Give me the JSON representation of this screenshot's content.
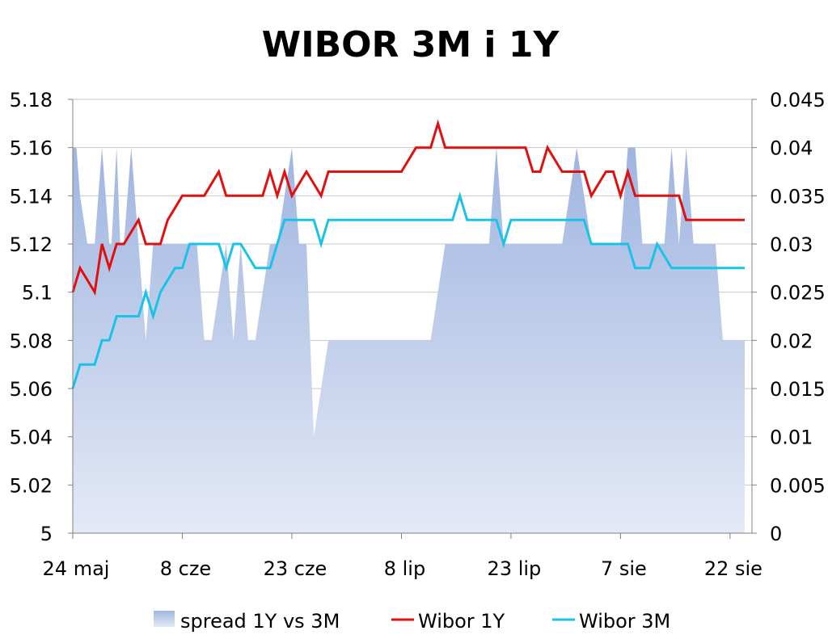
{
  "chart_data": {
    "type": "line",
    "title": "WIBOR 3M i 1Y",
    "xlabel": "",
    "ylabel": "",
    "x_tick_labels": [
      "24 maj",
      "8 cze",
      "23 cze",
      "8 lip",
      "23 lip",
      "7 sie",
      "22 sie"
    ],
    "x_tick_day_offsets": [
      0,
      15,
      30,
      45,
      60,
      75,
      90
    ],
    "x_range_days": [
      0,
      93
    ],
    "y_left": {
      "ylim": [
        5,
        5.18
      ],
      "ticks": [
        "5",
        "5.02",
        "5.04",
        "5.06",
        "5.08",
        "5.1",
        "5.12",
        "5.14",
        "5.16",
        "5.18"
      ]
    },
    "y_right": {
      "ylim": [
        0,
        0.045
      ],
      "ticks": [
        "0",
        "0.005",
        "0.01",
        "0.015",
        "0.02",
        "0.025",
        "0.03",
        "0.035",
        "0.04",
        "0.045"
      ]
    },
    "grid": true,
    "legend_position": "bottom",
    "series": [
      {
        "name": "spread 1Y vs 3M",
        "kind": "area",
        "axis": "right",
        "color": "#9fb5e0",
        "color_light": "#e4e9f6",
        "x": [
          0,
          0.5,
          1,
          2,
          3,
          4,
          5,
          5.3,
          6,
          6.5,
          7,
          7.5,
          8,
          9,
          10,
          11,
          12,
          12.5,
          13,
          13.5,
          14,
          15,
          16,
          17,
          18,
          19,
          20,
          21,
          22,
          23,
          24,
          25,
          26,
          27,
          28,
          29,
          30,
          31,
          32,
          33,
          34,
          35,
          36,
          37,
          38,
          39,
          40,
          41,
          42,
          43,
          44,
          45,
          46,
          47,
          48,
          49,
          50,
          51,
          52,
          53,
          54,
          55,
          56,
          57,
          58,
          59,
          60,
          61,
          62,
          63,
          64,
          65,
          66,
          67,
          68,
          69,
          70,
          71,
          72,
          73,
          74,
          75,
          76,
          77,
          78,
          79,
          80,
          81,
          82,
          83,
          84,
          85,
          86,
          87,
          88,
          89,
          90,
          91,
          92
        ],
        "values": [
          0.04,
          0.04,
          0.035,
          0.03,
          0.03,
          0.04,
          0.03,
          0.03,
          0.04,
          0.03,
          0.03,
          0.035,
          0.04,
          0.03,
          0.02,
          0.03,
          0.03,
          0.03,
          0.03,
          0.03,
          0.03,
          0.03,
          0.03,
          0.03,
          0.02,
          0.02,
          0.025,
          0.03,
          0.02,
          0.03,
          0.02,
          0.02,
          0.025,
          0.03,
          0.03,
          0.035,
          0.04,
          0.03,
          0.03,
          0.01,
          0.015,
          0.02,
          0.02,
          0.02,
          0.02,
          0.02,
          0.02,
          0.02,
          0.02,
          0.02,
          0.02,
          0.02,
          0.02,
          0.02,
          0.02,
          0.02,
          0.025,
          0.03,
          0.03,
          0.03,
          0.03,
          0.03,
          0.03,
          0.03,
          0.04,
          0.03,
          0.03,
          0.03,
          0.03,
          0.03,
          0.03,
          0.03,
          0.03,
          0.03,
          0.035,
          0.04,
          0.035,
          0.03,
          0.03,
          0.03,
          0.03,
          0.03,
          0.04,
          0.04,
          0.03,
          0.03,
          0.03,
          0.03,
          0.04,
          0.03,
          0.04,
          0.03,
          0.03,
          0.03,
          0.03,
          0.02,
          0.02,
          0.02,
          0.02
        ]
      },
      {
        "name": "Wibor 1Y",
        "kind": "line",
        "axis": "left",
        "color": "#e01010",
        "x": [
          0,
          1,
          2,
          3,
          4,
          5,
          6,
          7,
          8,
          9,
          10,
          11,
          12,
          13,
          14,
          15,
          16,
          17,
          18,
          19,
          20,
          21,
          22,
          23,
          24,
          25,
          26,
          27,
          28,
          29,
          30,
          31,
          32,
          33,
          34,
          35,
          36,
          37,
          38,
          39,
          40,
          41,
          42,
          43,
          44,
          45,
          46,
          47,
          48,
          49,
          50,
          51,
          52,
          53,
          54,
          55,
          56,
          57,
          58,
          59,
          60,
          61,
          62,
          63,
          64,
          65,
          66,
          67,
          68,
          69,
          70,
          71,
          72,
          73,
          74,
          75,
          76,
          77,
          78,
          79,
          80,
          81,
          82,
          83,
          84,
          85,
          86,
          87,
          88,
          89,
          90,
          91,
          92
        ],
        "values": [
          5.1,
          5.11,
          5.105,
          5.1,
          5.12,
          5.11,
          5.12,
          5.12,
          5.125,
          5.13,
          5.12,
          5.12,
          5.12,
          5.13,
          5.135,
          5.14,
          5.14,
          5.14,
          5.14,
          5.145,
          5.15,
          5.14,
          5.14,
          5.14,
          5.14,
          5.14,
          5.14,
          5.15,
          5.14,
          5.15,
          5.14,
          5.145,
          5.15,
          5.145,
          5.14,
          5.15,
          5.15,
          5.15,
          5.15,
          5.15,
          5.15,
          5.15,
          5.15,
          5.15,
          5.15,
          5.15,
          5.155,
          5.16,
          5.16,
          5.16,
          5.17,
          5.16,
          5.16,
          5.16,
          5.16,
          5.16,
          5.16,
          5.16,
          5.16,
          5.16,
          5.16,
          5.16,
          5.16,
          5.15,
          5.15,
          5.16,
          5.155,
          5.15,
          5.15,
          5.15,
          5.15,
          5.14,
          5.145,
          5.15,
          5.15,
          5.14,
          5.15,
          5.14,
          5.14,
          5.14,
          5.14,
          5.14,
          5.14,
          5.14,
          5.13,
          5.13,
          5.13,
          5.13,
          5.13,
          5.13,
          5.13,
          5.13,
          5.13
        ]
      },
      {
        "name": "Wibor 3M",
        "kind": "line",
        "axis": "left",
        "color": "#19c3e8",
        "x": [
          0,
          1,
          2,
          3,
          4,
          5,
          6,
          7,
          8,
          9,
          10,
          11,
          12,
          13,
          14,
          15,
          16,
          17,
          18,
          19,
          20,
          21,
          22,
          23,
          24,
          25,
          26,
          27,
          28,
          29,
          30,
          31,
          32,
          33,
          34,
          35,
          36,
          37,
          38,
          39,
          40,
          41,
          42,
          43,
          44,
          45,
          46,
          47,
          48,
          49,
          50,
          51,
          52,
          53,
          54,
          55,
          56,
          57,
          58,
          59,
          60,
          61,
          62,
          63,
          64,
          65,
          66,
          67,
          68,
          69,
          70,
          71,
          72,
          73,
          74,
          75,
          76,
          77,
          78,
          79,
          80,
          81,
          82,
          83,
          84,
          85,
          86,
          87,
          88,
          89,
          90,
          91,
          92
        ],
        "values": [
          5.06,
          5.07,
          5.07,
          5.07,
          5.08,
          5.08,
          5.09,
          5.09,
          5.09,
          5.09,
          5.1,
          5.09,
          5.1,
          5.105,
          5.11,
          5.11,
          5.12,
          5.12,
          5.12,
          5.12,
          5.12,
          5.11,
          5.12,
          5.12,
          5.115,
          5.11,
          5.11,
          5.11,
          5.12,
          5.13,
          5.13,
          5.13,
          5.13,
          5.13,
          5.12,
          5.13,
          5.13,
          5.13,
          5.13,
          5.13,
          5.13,
          5.13,
          5.13,
          5.13,
          5.13,
          5.13,
          5.13,
          5.13,
          5.13,
          5.13,
          5.13,
          5.13,
          5.13,
          5.14,
          5.13,
          5.13,
          5.13,
          5.13,
          5.13,
          5.12,
          5.13,
          5.13,
          5.13,
          5.13,
          5.13,
          5.13,
          5.13,
          5.13,
          5.13,
          5.13,
          5.13,
          5.12,
          5.12,
          5.12,
          5.12,
          5.12,
          5.12,
          5.11,
          5.11,
          5.11,
          5.12,
          5.115,
          5.11,
          5.11,
          5.11,
          5.11,
          5.11,
          5.11,
          5.11,
          5.11,
          5.11,
          5.11,
          5.11
        ]
      }
    ]
  }
}
